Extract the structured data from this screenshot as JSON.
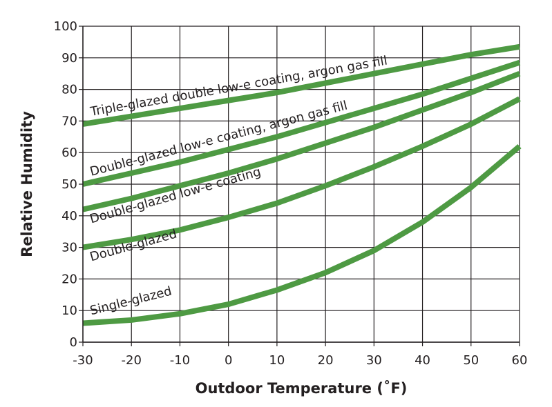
{
  "chart_data": {
    "type": "line",
    "x_label": "Outdoor Temperature (˚F)",
    "y_label": "Relative Humidity",
    "x": [
      -30,
      -20,
      -10,
      0,
      10,
      20,
      30,
      40,
      50,
      60
    ],
    "xlim": [
      -30,
      60
    ],
    "xticks": [
      -30,
      -20,
      -10,
      0,
      10,
      20,
      30,
      40,
      50,
      60
    ],
    "ylim": [
      0,
      100
    ],
    "yticks": [
      0,
      10,
      20,
      30,
      40,
      50,
      60,
      70,
      80,
      90,
      100
    ],
    "grid": true,
    "series": [
      {
        "name": "Triple-glazed double low-e coating, argon gas fill",
        "color": "#4e9a43",
        "values": [
          69,
          71.5,
          74,
          76.5,
          79,
          82,
          85,
          88,
          91,
          93.5
        ]
      },
      {
        "name": "Double-glazed low-e coating, argon gas fill",
        "color": "#4e9a43",
        "values": [
          50,
          53.5,
          57,
          61,
          65,
          69.5,
          74,
          78.5,
          83.5,
          88.5
        ]
      },
      {
        "name": "Double-glazed low-e coating",
        "color": "#4e9a43",
        "values": [
          42,
          45.5,
          49.5,
          53.5,
          58,
          63,
          68,
          73.5,
          79,
          85
        ]
      },
      {
        "name": "Double-glazed",
        "color": "#4e9a43",
        "values": [
          30,
          32.5,
          35.5,
          39.5,
          44,
          49.5,
          55.5,
          62,
          69,
          77
        ]
      },
      {
        "name": "Single-glazed",
        "color": "#4e9a43",
        "values": [
          6,
          7,
          9,
          12,
          16.5,
          22,
          29,
          38,
          49,
          62
        ]
      }
    ]
  }
}
